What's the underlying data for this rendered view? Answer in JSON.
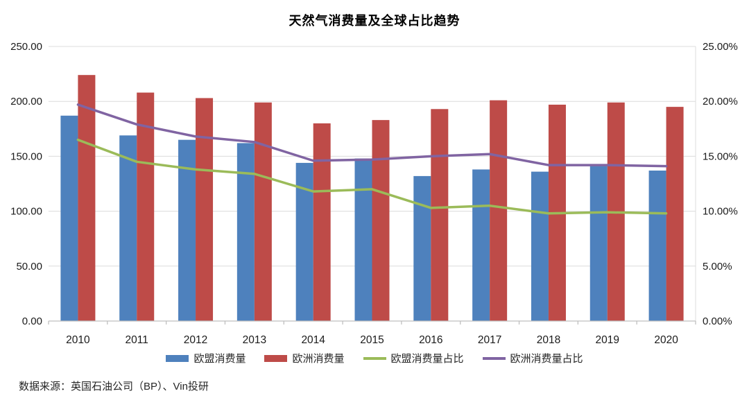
{
  "chart_data": {
    "type": "combo_bar_line",
    "title": "天然气消费量及全球占比趋势",
    "categories": [
      "2010",
      "2011",
      "2012",
      "2013",
      "2014",
      "2015",
      "2016",
      "2017",
      "2018",
      "2019",
      "2020"
    ],
    "series": [
      {
        "name": "欧盟消费量",
        "type": "bar",
        "axis": "left",
        "color": "#4E81BD",
        "values": [
          187,
          169,
          165,
          162,
          144,
          148,
          132,
          138,
          136,
          141,
          137
        ]
      },
      {
        "name": "欧洲消费量",
        "type": "bar",
        "axis": "left",
        "color": "#BE4B48",
        "values": [
          224,
          208,
          203,
          199,
          180,
          183,
          193,
          201,
          197,
          199,
          195
        ]
      },
      {
        "name": "欧盟消费量占比",
        "type": "line",
        "axis": "right",
        "color": "#9BBB59",
        "values": [
          16.5,
          14.5,
          13.8,
          13.4,
          11.8,
          12.0,
          10.3,
          10.5,
          9.8,
          9.9,
          9.8
        ]
      },
      {
        "name": "欧洲消费量占比",
        "type": "line",
        "axis": "right",
        "color": "#8064A2",
        "values": [
          19.7,
          17.9,
          16.8,
          16.3,
          14.6,
          14.7,
          15.0,
          15.2,
          14.2,
          14.2,
          14.1
        ]
      }
    ],
    "left_axis": {
      "min": 0,
      "max": 250,
      "tick_labels": [
        "0.00",
        "50.00",
        "100.00",
        "150.00",
        "200.00",
        "250.00"
      ]
    },
    "right_axis": {
      "min": 0,
      "max": 25,
      "tick_labels": [
        "0.00%",
        "5.00%",
        "10.00%",
        "15.00%",
        "20.00%",
        "25.00%"
      ]
    },
    "grid": true,
    "legend_position": "bottom"
  },
  "source_note": "数据来源：英国石油公司（BP）、Vin投研",
  "colors": {
    "gridline": "#DCDCDC",
    "axis_line": "#BFBFBF",
    "tick_text": "#1A1A1A",
    "background": "#FFFFFF"
  }
}
